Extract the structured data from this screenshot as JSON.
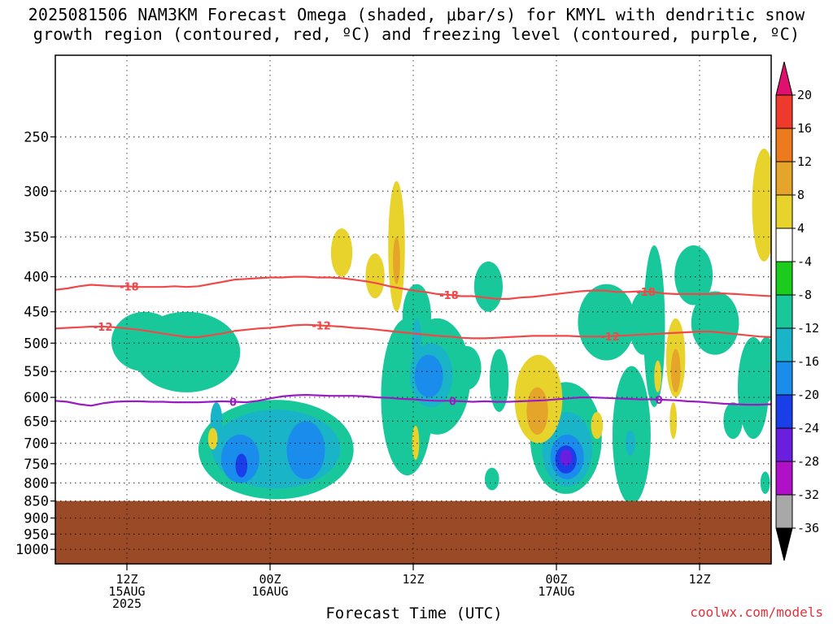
{
  "title": {
    "line1": "2025081506 NAM3KM Forecast Omega (shaded, μbar/s) for KMYL with dendritic snow",
    "line2": "growth region (contoured, red, ºC) and freezing level (contoured, purple, ºC)"
  },
  "footer": {
    "credit": "coolwx.com/models"
  },
  "colors": {
    "terrain": "#9b4a28",
    "red_contour": "#f04848",
    "purple_contour": "#9a1bc4",
    "green": "#1ccc1c",
    "teal": "#19c89a",
    "cyan": "#1ab4c8",
    "blue": "#1a5cf0",
    "purple_fill": "#8a18c8",
    "yellow": "#e8d22c",
    "orange": "#e88a20"
  },
  "chart_data": {
    "type": "heatmap",
    "title": "2025081506 NAM3KM Forecast Omega (shaded, μbar/s) for KMYL with dendritic snow growth region (contoured, red, ºC) and freezing level (contoured, purple, ºC)",
    "xlabel": "Forecast Time (UTC)",
    "ylabel": "",
    "x_axis": {
      "range_hours": [
        0,
        60
      ],
      "ticks": [
        {
          "hour": 6,
          "lines": [
            "12Z",
            "15AUG",
            "2025"
          ]
        },
        {
          "hour": 18,
          "lines": [
            "00Z",
            "16AUG"
          ]
        },
        {
          "hour": 30,
          "lines": [
            "12Z"
          ]
        },
        {
          "hour": 42,
          "lines": [
            "00Z",
            "17AUG"
          ]
        },
        {
          "hour": 54,
          "lines": [
            "12Z"
          ]
        }
      ]
    },
    "y_axis": {
      "scale": "log-pressure",
      "inverted": true,
      "range_hpa": [
        1050,
        190
      ],
      "ticks_hpa": [
        250,
        300,
        350,
        400,
        450,
        500,
        550,
        600,
        650,
        700,
        750,
        800,
        850,
        900,
        950,
        1000
      ]
    },
    "surface_pressure_hpa": 850,
    "colorbar": {
      "labels": [
        "20",
        "16",
        "12",
        "8",
        "4",
        "-4",
        "-8",
        "-12",
        "-16",
        "-20",
        "-24",
        "-28",
        "-32",
        "-36"
      ],
      "bins": [
        {
          "low": 20,
          "high": null,
          "color": "#e0106e"
        },
        {
          "low": 16,
          "high": 20,
          "color": "#ee3a2c"
        },
        {
          "low": 12,
          "high": 16,
          "color": "#ee7a1e"
        },
        {
          "low": 8,
          "high": 12,
          "color": "#e4a52a"
        },
        {
          "low": 4,
          "high": 8,
          "color": "#e8d22c"
        },
        {
          "low": -4,
          "high": 4,
          "color": "#ffffff"
        },
        {
          "low": -8,
          "high": -4,
          "color": "#1ccc1c"
        },
        {
          "low": -12,
          "high": -8,
          "color": "#19c89a"
        },
        {
          "low": -16,
          "high": -12,
          "color": "#1ab4c8"
        },
        {
          "low": -20,
          "high": -16,
          "color": "#1a8cec"
        },
        {
          "low": -24,
          "high": -20,
          "color": "#1a3ee8"
        },
        {
          "low": -28,
          "high": -24,
          "color": "#6a1ee0"
        },
        {
          "low": -32,
          "high": -28,
          "color": "#b010c8"
        },
        {
          "low": -36,
          "high": -32,
          "color": "#a8a8a8"
        },
        {
          "low": null,
          "high": -36,
          "color": "#000000"
        }
      ]
    },
    "contours": [
      {
        "name": "-18",
        "color": "#f04848",
        "points": [
          [
            0,
            418
          ],
          [
            1,
            416
          ],
          [
            2,
            413
          ],
          [
            3,
            411
          ],
          [
            4,
            412
          ],
          [
            5,
            413
          ],
          [
            6,
            413
          ],
          [
            7,
            414
          ],
          [
            8,
            414
          ],
          [
            9,
            414
          ],
          [
            10,
            413
          ],
          [
            11,
            414
          ],
          [
            12,
            413
          ],
          [
            13,
            410
          ],
          [
            14,
            407
          ],
          [
            15,
            404
          ],
          [
            16,
            403
          ],
          [
            17,
            402
          ],
          [
            18,
            401
          ],
          [
            19,
            401
          ],
          [
            20,
            400
          ],
          [
            21,
            400
          ],
          [
            22,
            401
          ],
          [
            23,
            401
          ],
          [
            24,
            402
          ],
          [
            25,
            404
          ],
          [
            26,
            406
          ],
          [
            27,
            409
          ],
          [
            28,
            413
          ],
          [
            29,
            416
          ],
          [
            30,
            419
          ],
          [
            31,
            421
          ],
          [
            32,
            424
          ],
          [
            33,
            425
          ],
          [
            34,
            427
          ],
          [
            35,
            427
          ],
          [
            36,
            429
          ],
          [
            37,
            431
          ],
          [
            38,
            431
          ],
          [
            39,
            429
          ],
          [
            40,
            428
          ],
          [
            41,
            426
          ],
          [
            42,
            424
          ],
          [
            43,
            422
          ],
          [
            44,
            420
          ],
          [
            45,
            419
          ],
          [
            46,
            419
          ],
          [
            47,
            421
          ],
          [
            48,
            421
          ],
          [
            49,
            420
          ],
          [
            50,
            421
          ],
          [
            51,
            423
          ],
          [
            52,
            424
          ],
          [
            53,
            424
          ],
          [
            54,
            424
          ],
          [
            55,
            424
          ],
          [
            56,
            423
          ],
          [
            57,
            424
          ],
          [
            58,
            425
          ],
          [
            59,
            426
          ],
          [
            60,
            427
          ]
        ],
        "labels": [
          {
            "x": 6.2,
            "text": "-18"
          },
          {
            "x": 33.0,
            "text": "-18"
          },
          {
            "x": 49.5,
            "text": "-18"
          }
        ]
      },
      {
        "name": "-12",
        "color": "#f04848",
        "points": [
          [
            0,
            476
          ],
          [
            1,
            475
          ],
          [
            2,
            474
          ],
          [
            3,
            473
          ],
          [
            4,
            473
          ],
          [
            5,
            474
          ],
          [
            6,
            476
          ],
          [
            7,
            478
          ],
          [
            8,
            481
          ],
          [
            9,
            484
          ],
          [
            10,
            487
          ],
          [
            11,
            490
          ],
          [
            12,
            490
          ],
          [
            13,
            487
          ],
          [
            14,
            484
          ],
          [
            15,
            480
          ],
          [
            16,
            478
          ],
          [
            17,
            476
          ],
          [
            18,
            475
          ],
          [
            19,
            473
          ],
          [
            20,
            471
          ],
          [
            21,
            470
          ],
          [
            22,
            471
          ],
          [
            23,
            472
          ],
          [
            24,
            473
          ],
          [
            25,
            475
          ],
          [
            26,
            476
          ],
          [
            27,
            478
          ],
          [
            28,
            480
          ],
          [
            29,
            482
          ],
          [
            30,
            484
          ],
          [
            31,
            486
          ],
          [
            32,
            488
          ],
          [
            33,
            489
          ],
          [
            34,
            491
          ],
          [
            35,
            492
          ],
          [
            36,
            492
          ],
          [
            37,
            491
          ],
          [
            38,
            490
          ],
          [
            39,
            489
          ],
          [
            40,
            488
          ],
          [
            41,
            488
          ],
          [
            42,
            488
          ],
          [
            43,
            488
          ],
          [
            44,
            489
          ],
          [
            45,
            489
          ],
          [
            46,
            489
          ],
          [
            47,
            488
          ],
          [
            48,
            487
          ],
          [
            49,
            486
          ],
          [
            50,
            485
          ],
          [
            51,
            484
          ],
          [
            52,
            483
          ],
          [
            53,
            482
          ],
          [
            54,
            481
          ],
          [
            55,
            481
          ],
          [
            56,
            483
          ],
          [
            57,
            485
          ],
          [
            58,
            487
          ],
          [
            59,
            489
          ],
          [
            60,
            490
          ]
        ],
        "labels": [
          {
            "x": 4.0,
            "text": "-12"
          },
          {
            "x": 22.3,
            "text": "-12"
          },
          {
            "x": 46.5,
            "text": "-12"
          }
        ]
      },
      {
        "name": "0",
        "color": "#9a1bc4",
        "points": [
          [
            0,
            607
          ],
          [
            1,
            609
          ],
          [
            2,
            614
          ],
          [
            3,
            617
          ],
          [
            4,
            612
          ],
          [
            5,
            609
          ],
          [
            6,
            608
          ],
          [
            7,
            608
          ],
          [
            8,
            609
          ],
          [
            9,
            609
          ],
          [
            10,
            610
          ],
          [
            11,
            610
          ],
          [
            12,
            610
          ],
          [
            13,
            609
          ],
          [
            14,
            608
          ],
          [
            15,
            609
          ],
          [
            16,
            610
          ],
          [
            17,
            607
          ],
          [
            18,
            602
          ],
          [
            19,
            598
          ],
          [
            20,
            596
          ],
          [
            21,
            595
          ],
          [
            22,
            596
          ],
          [
            23,
            597
          ],
          [
            24,
            597
          ],
          [
            25,
            597
          ],
          [
            26,
            598
          ],
          [
            27,
            600
          ],
          [
            28,
            601
          ],
          [
            29,
            603
          ],
          [
            30,
            604
          ],
          [
            31,
            606
          ],
          [
            32,
            607
          ],
          [
            33,
            607
          ],
          [
            34,
            608
          ],
          [
            35,
            609
          ],
          [
            36,
            608
          ],
          [
            37,
            609
          ],
          [
            38,
            609
          ],
          [
            39,
            608
          ],
          [
            40,
            607
          ],
          [
            41,
            606
          ],
          [
            42,
            604
          ],
          [
            43,
            602
          ],
          [
            44,
            600
          ],
          [
            45,
            600
          ],
          [
            46,
            601
          ],
          [
            47,
            602
          ],
          [
            48,
            603
          ],
          [
            49,
            604
          ],
          [
            50,
            604
          ],
          [
            51,
            605
          ],
          [
            52,
            606
          ],
          [
            53,
            608
          ],
          [
            54,
            609
          ],
          [
            55,
            611
          ],
          [
            56,
            613
          ],
          [
            57,
            614
          ],
          [
            58,
            615
          ],
          [
            59,
            615
          ],
          [
            60,
            614
          ]
        ],
        "labels": [
          {
            "x": 14.9,
            "text": "0"
          },
          {
            "x": 33.3,
            "text": "0"
          },
          {
            "x": 50.6,
            "text": "0"
          }
        ]
      }
    ],
    "omega_regions": [
      {
        "bin": -8,
        "ellipses": [
          [
            18.5,
            725,
            6.5,
            120
          ],
          [
            11.0,
            520,
            4.5,
            70
          ],
          [
            7.5,
            500,
            2.8,
            50
          ],
          [
            32.0,
            570,
            2.8,
            110
          ],
          [
            29.5,
            620,
            2.2,
            160
          ],
          [
            30.3,
            460,
            1.2,
            50
          ],
          [
            34.5,
            545,
            1.2,
            40
          ],
          [
            36.3,
            415,
            1.2,
            35
          ],
          [
            37.2,
            570,
            0.8,
            60
          ],
          [
            36.6,
            790,
            0.6,
            30
          ],
          [
            42.8,
            700,
            3.0,
            130
          ],
          [
            46.2,
            470,
            2.4,
            60
          ],
          [
            49.3,
            470,
            1.2,
            50
          ],
          [
            48.3,
            700,
            1.6,
            160
          ],
          [
            50.2,
            490,
            0.9,
            130
          ],
          [
            53.5,
            400,
            1.6,
            40
          ],
          [
            55.3,
            470,
            2.0,
            50
          ],
          [
            58.5,
            590,
            1.3,
            100
          ],
          [
            56.8,
            650,
            0.8,
            40
          ],
          [
            59.6,
            550,
            0.9,
            60
          ],
          [
            59.5,
            800,
            0.4,
            30
          ]
        ]
      },
      {
        "bin": -12,
        "ellipses": [
          [
            18.5,
            720,
            5.4,
            95
          ],
          [
            31.5,
            560,
            1.8,
            60
          ],
          [
            42.9,
            720,
            2.1,
            90
          ],
          [
            13.5,
            650,
            0.5,
            40
          ],
          [
            48.2,
            700,
            0.4,
            30
          ],
          [
            30.3,
            500,
            0.4,
            40
          ]
        ]
      },
      {
        "bin": -16,
        "ellipses": [
          [
            15.5,
            740,
            1.6,
            60
          ],
          [
            21.0,
            720,
            1.6,
            70
          ],
          [
            31.3,
            560,
            1.2,
            40
          ],
          [
            42.9,
            735,
            1.4,
            55
          ]
        ]
      },
      {
        "bin": -20,
        "ellipses": [
          [
            15.6,
            755,
            0.5,
            30
          ],
          [
            42.8,
            740,
            0.9,
            35
          ]
        ]
      },
      {
        "bin": -24,
        "ellipses": [
          [
            42.8,
            735,
            0.5,
            20
          ]
        ]
      },
      {
        "bin": 4,
        "ellipses": [
          [
            28.6,
            370,
            0.7,
            80
          ],
          [
            24.0,
            370,
            0.9,
            30
          ],
          [
            26.8,
            400,
            0.8,
            30
          ],
          [
            40.5,
            610,
            2.0,
            90
          ],
          [
            45.4,
            660,
            0.5,
            30
          ],
          [
            50.5,
            560,
            0.3,
            30
          ],
          [
            52.0,
            530,
            0.8,
            70
          ],
          [
            51.8,
            650,
            0.3,
            40
          ],
          [
            13.2,
            690,
            0.4,
            25
          ],
          [
            30.2,
            700,
            0.3,
            40
          ],
          [
            59.4,
            320,
            1.0,
            60
          ]
        ]
      },
      {
        "bin": 8,
        "ellipses": [
          [
            28.6,
            380,
            0.3,
            30
          ],
          [
            40.4,
            630,
            0.9,
            50
          ],
          [
            52.0,
            550,
            0.4,
            40
          ]
        ]
      }
    ]
  }
}
